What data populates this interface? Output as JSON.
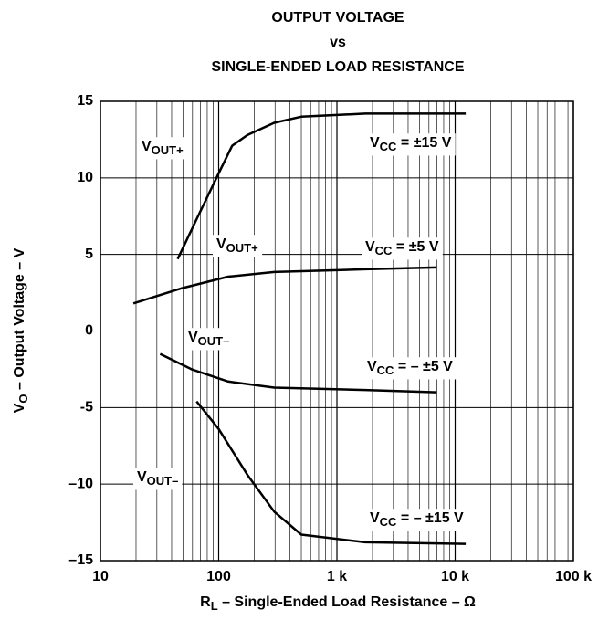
{
  "chart_data": {
    "type": "line",
    "title": [
      "OUTPUT VOLTAGE",
      "vs",
      "SINGLE-ENDED LOAD RESISTANCE"
    ],
    "x_label": {
      "main": "R",
      "sub": "L",
      "rest": " – Single-Ended Load Resistance – Ω"
    },
    "y_label": {
      "main": "V",
      "sub": "O",
      "rest": " – Output Voltage – V"
    },
    "x_log": true,
    "grid": true,
    "xlim": [
      10,
      100000
    ],
    "xticks": [
      10,
      100,
      {
        "value": 1000,
        "label": "1 k"
      },
      {
        "value": 10000,
        "label": "10 k"
      },
      {
        "value": 100000,
        "label": "100 k"
      }
    ],
    "x_minor_ticks": [
      20,
      30,
      40,
      50,
      60,
      70,
      80,
      90,
      200,
      300,
      400,
      500,
      600,
      700,
      800,
      900,
      2000,
      3000,
      4000,
      5000,
      6000,
      7000,
      8000,
      9000,
      20000,
      30000,
      40000,
      50000,
      60000,
      70000,
      80000,
      90000
    ],
    "ylim": [
      -15,
      15
    ],
    "yticks": [
      {
        "value": -15,
        "label": "–15"
      },
      {
        "value": -10,
        "label": "–10"
      },
      -5,
      0,
      5,
      10,
      15
    ],
    "series": [
      {
        "color": "#000000",
        "x": [
          45,
          65,
          100,
          130,
          175,
          295,
          500,
          1740,
          12300
        ],
        "values": [
          4.7,
          7.3,
          10.3,
          12.1,
          12.8,
          13.6,
          14.0,
          14.2,
          14.2
        ]
      },
      {
        "color": "#000000",
        "x": [
          19,
          49,
          120,
          295,
          1740,
          7000
        ],
        "values": [
          1.8,
          2.8,
          3.55,
          3.85,
          4.03,
          4.15
        ]
      },
      {
        "color": "#000000",
        "x": [
          32,
          59,
          120,
          295,
          1740,
          7000
        ],
        "values": [
          -1.5,
          -2.5,
          -3.3,
          -3.7,
          -3.85,
          -4.0
        ]
      },
      {
        "color": "#000000",
        "x": [
          65,
          100,
          175,
          295,
          500,
          1740,
          12300
        ],
        "values": [
          -4.6,
          -6.4,
          -9.4,
          -11.8,
          -13.3,
          -13.8,
          -13.9
        ]
      }
    ],
    "annotations": [
      {
        "main": "V",
        "sub": "OUT+",
        "rest": ""
      },
      {
        "main": "V",
        "sub": "CC",
        "rest": " = ±15 V"
      },
      {
        "main": "V",
        "sub": "OUT+",
        "rest": ""
      },
      {
        "main": "V",
        "sub": "CC",
        "rest": " = ±5 V"
      },
      {
        "main": "V",
        "sub": "OUT–",
        "rest": ""
      },
      {
        "main": "V",
        "sub": "CC",
        "rest": " = – ±5 V"
      },
      {
        "main": "V",
        "sub": "OUT–",
        "rest": ""
      },
      {
        "main": "V",
        "sub": "CC",
        "rest": " = – ±15 V"
      }
    ]
  }
}
